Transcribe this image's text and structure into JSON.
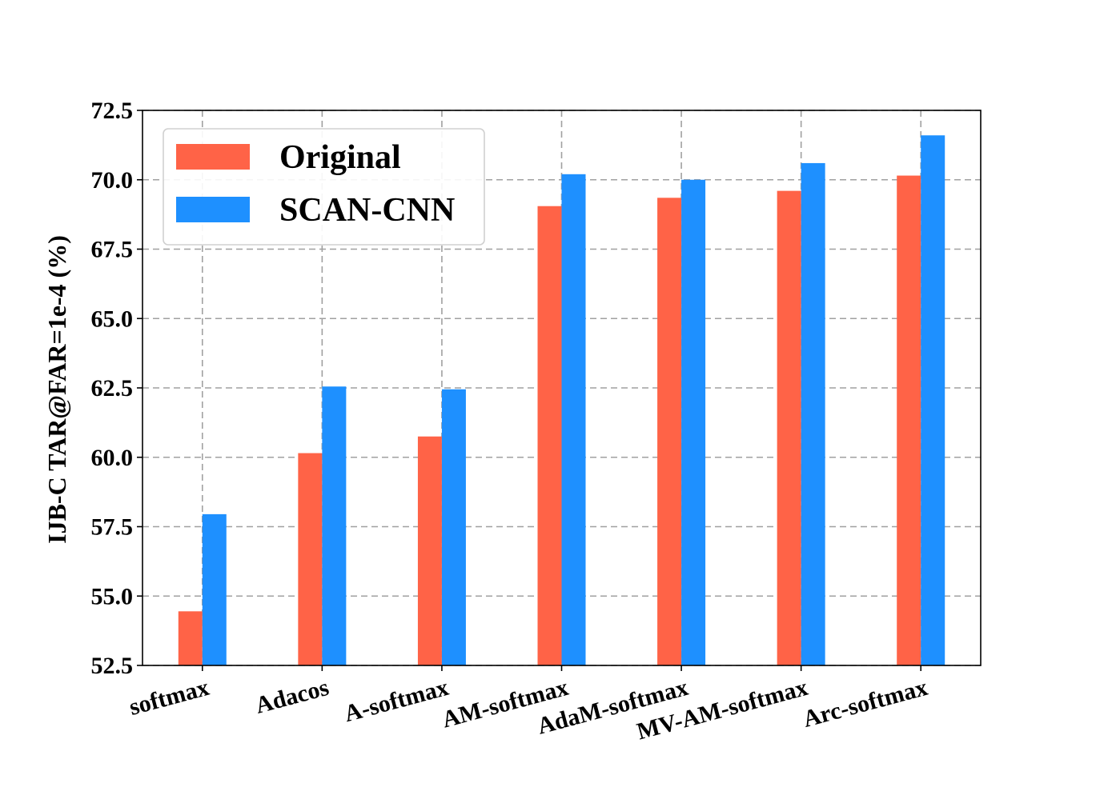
{
  "chart_data": {
    "type": "bar",
    "title": "",
    "xlabel": "",
    "ylabel": "IJB-C TAR@FAR=1e-4 (%)",
    "categories": [
      "softmax",
      "Adacos",
      "A-softmax",
      "AM-softmax",
      "AdaM-softmax",
      "MV-AM-softmax",
      "Arc-softmax"
    ],
    "series": [
      {
        "name": "Original",
        "color": "#ff6347",
        "values": [
          54.45,
          60.15,
          60.75,
          69.05,
          69.35,
          69.6,
          70.15
        ]
      },
      {
        "name": "SCAN-CNN",
        "color": "#1e90ff",
        "values": [
          57.95,
          62.55,
          62.45,
          70.2,
          70.0,
          70.6,
          71.6
        ]
      }
    ],
    "ylim": [
      52.5,
      72.5
    ],
    "yticks": [
      "52.5",
      "55.0",
      "57.5",
      "60.0",
      "62.5",
      "65.0",
      "67.5",
      "70.0",
      "72.5"
    ],
    "grid": true,
    "legend_position": "top-left"
  }
}
